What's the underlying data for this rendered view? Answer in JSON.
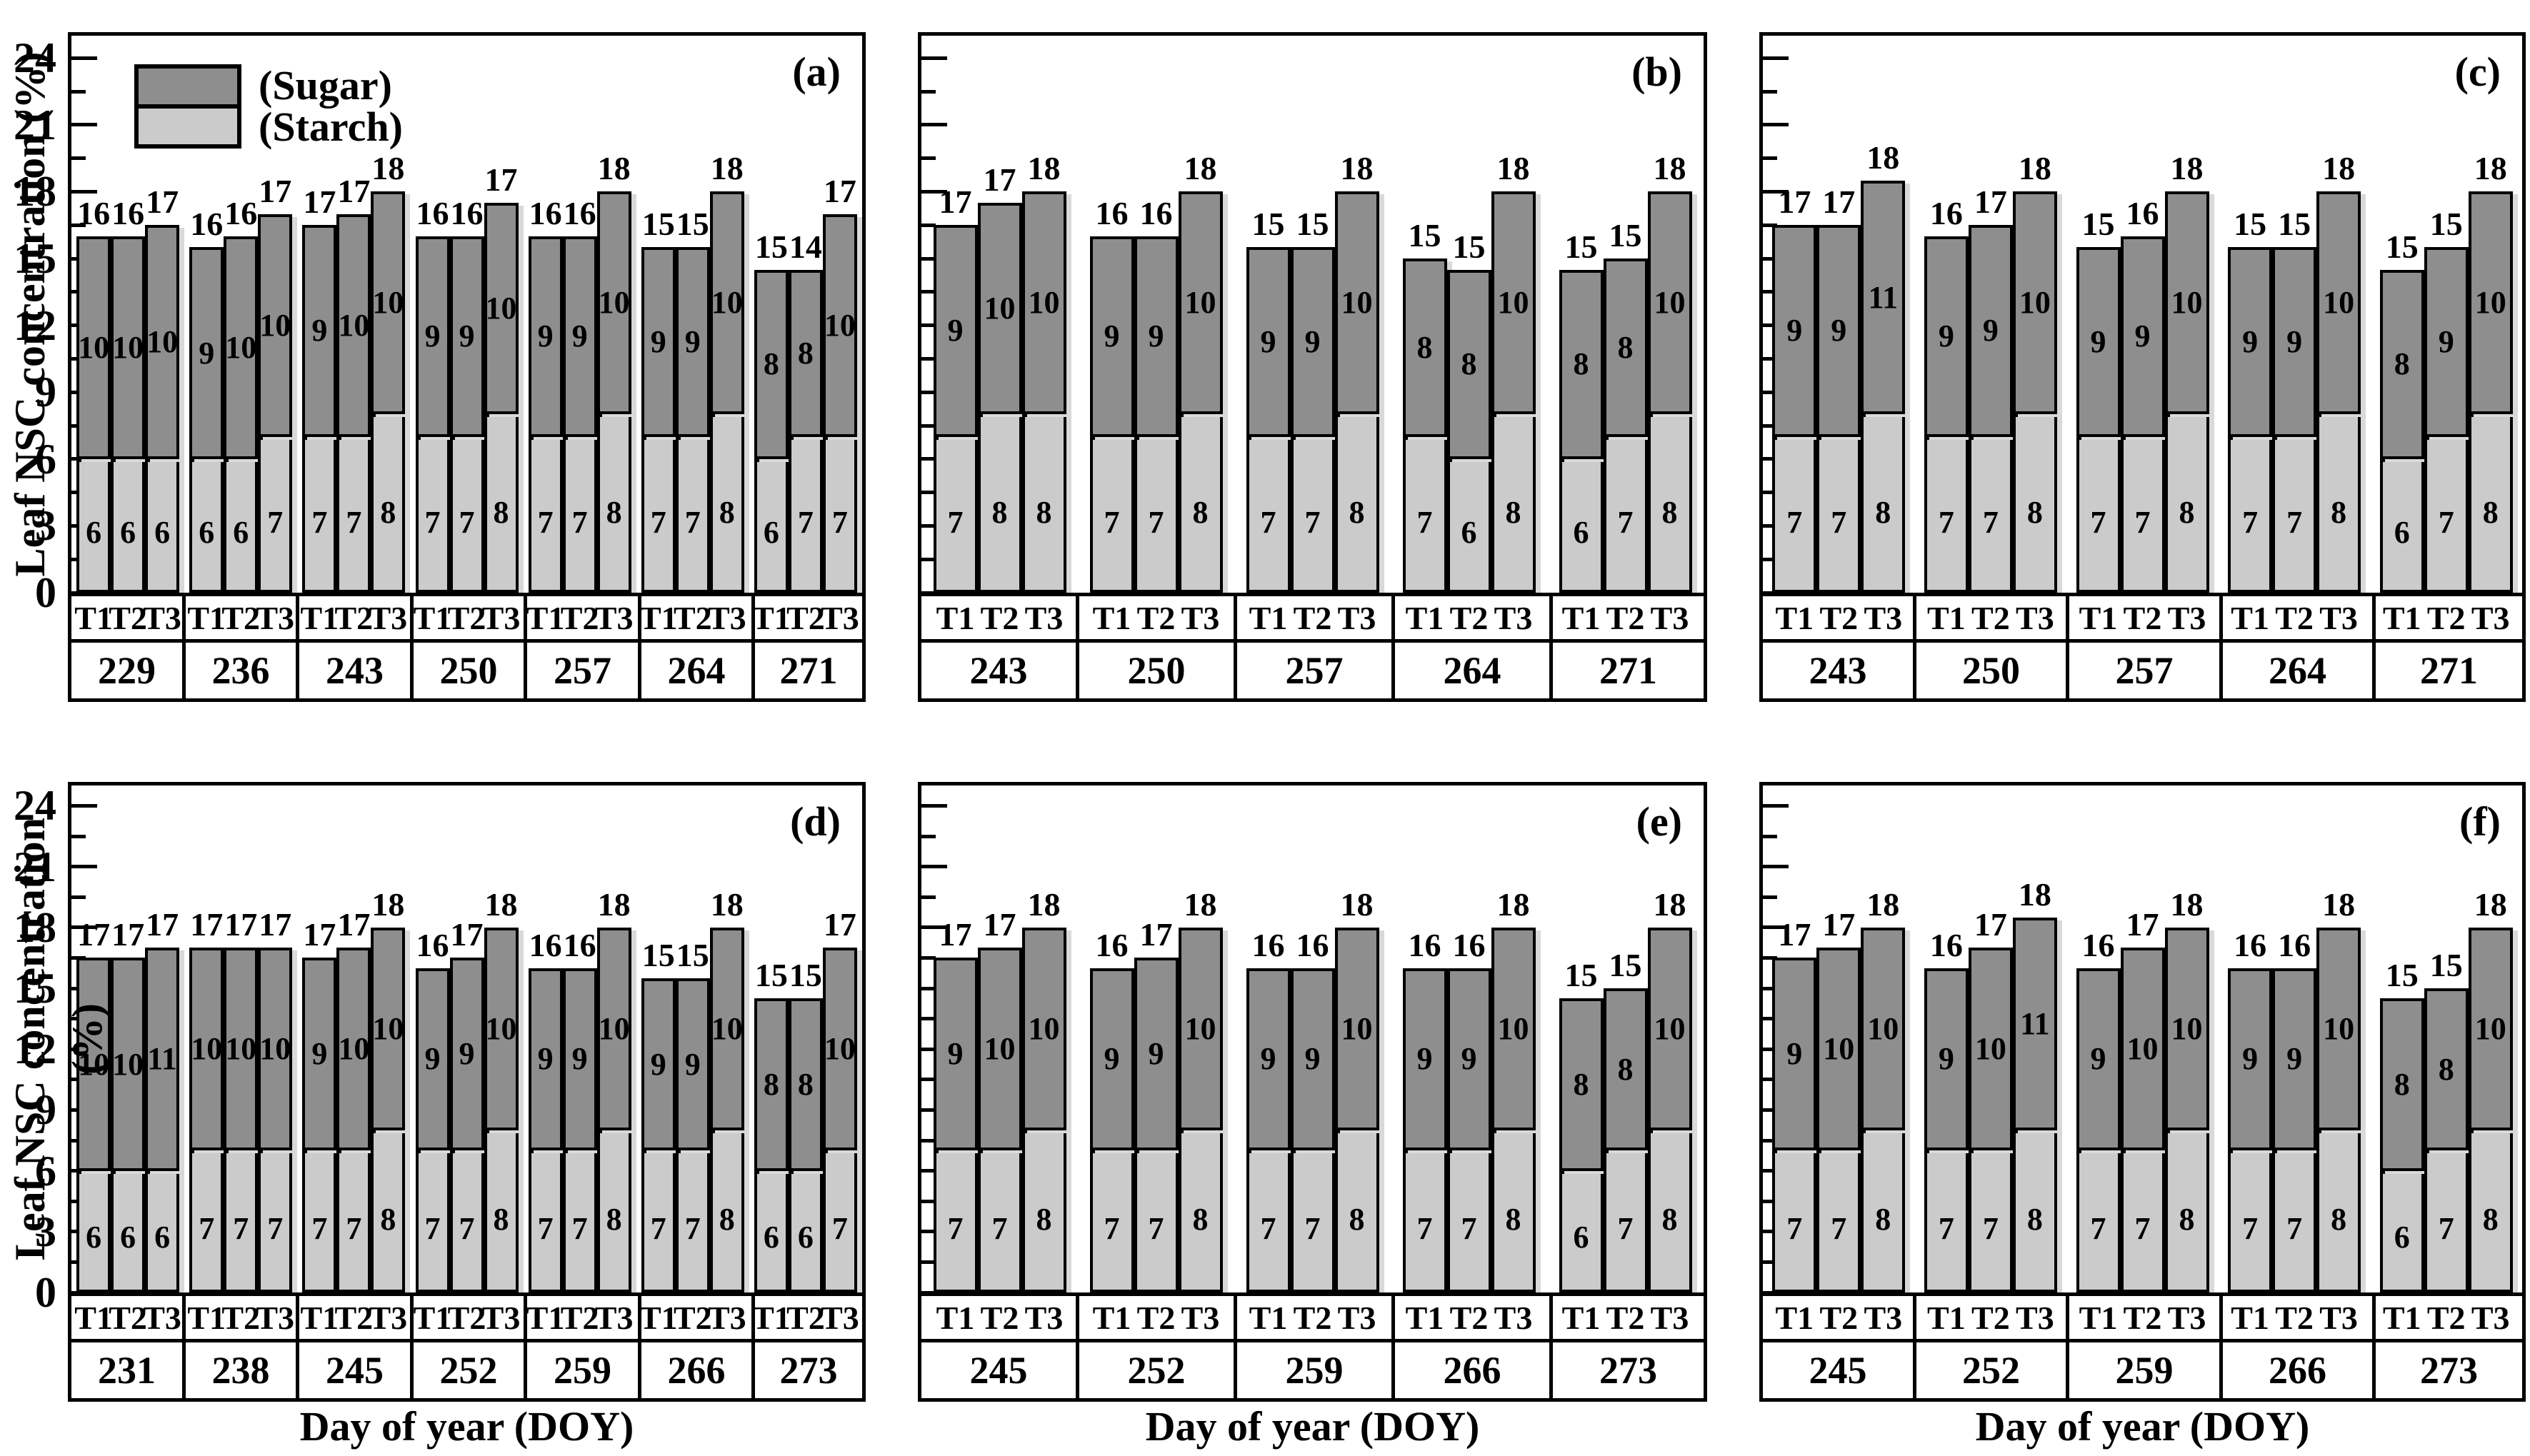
{
  "y_axis": {
    "title": "Leaf NSC concentration (%)",
    "tick_labels": [
      "0",
      "3",
      "6",
      "9",
      "12",
      "15",
      "18",
      "21",
      "24"
    ],
    "minor_step": 1.5,
    "max": 25
  },
  "x_axis": {
    "title": "Day of year (DOY)"
  },
  "legend": {
    "sugar": "(Sugar)",
    "starch": "(Starch)"
  },
  "treatments": [
    "T1",
    "T2",
    "T3"
  ],
  "colors": {
    "sugar_fill": "#8e8e8e",
    "starch_fill": "#cbcbcb",
    "border": "#000000",
    "background": "#ffffff"
  },
  "chart_data": [
    {
      "id": "a",
      "panel_letter": "(a)",
      "type": "stacked-bar",
      "show_y_tick_labels": true,
      "has_legend": true,
      "show_x_axis_title": false,
      "treatments": [
        "T1",
        "T2",
        "T3"
      ],
      "doys": [
        "229",
        "236",
        "243",
        "250",
        "257",
        "264",
        "271"
      ],
      "starch": [
        [
          6,
          6,
          6
        ],
        [
          6,
          6,
          7
        ],
        [
          7,
          7,
          8
        ],
        [
          7,
          7,
          8
        ],
        [
          7,
          7,
          8
        ],
        [
          7,
          7,
          8
        ],
        [
          6,
          7,
          7
        ]
      ],
      "sugar": [
        [
          10,
          10,
          10
        ],
        [
          9,
          10,
          10
        ],
        [
          9,
          10,
          10
        ],
        [
          9,
          9,
          10
        ],
        [
          9,
          9,
          10
        ],
        [
          9,
          9,
          10
        ],
        [
          8,
          8,
          10
        ]
      ],
      "totals": [
        [
          16,
          16,
          17
        ],
        [
          16,
          16,
          17
        ],
        [
          17,
          17,
          18
        ],
        [
          16,
          16,
          17
        ],
        [
          16,
          16,
          18
        ],
        [
          15,
          15,
          18
        ],
        [
          15,
          14,
          17
        ]
      ]
    },
    {
      "id": "b",
      "panel_letter": "(b)",
      "type": "stacked-bar",
      "show_y_tick_labels": false,
      "has_legend": false,
      "show_x_axis_title": false,
      "treatments": [
        "T1",
        "T2",
        "T3"
      ],
      "doys": [
        "243",
        "250",
        "257",
        "264",
        "271"
      ],
      "starch": [
        [
          7,
          8,
          8
        ],
        [
          7,
          7,
          8
        ],
        [
          7,
          7,
          8
        ],
        [
          7,
          6,
          8
        ],
        [
          6,
          7,
          8
        ]
      ],
      "sugar": [
        [
          9,
          10,
          10
        ],
        [
          9,
          9,
          10
        ],
        [
          9,
          9,
          10
        ],
        [
          8,
          8,
          10
        ],
        [
          8,
          8,
          10
        ]
      ],
      "totals": [
        [
          17,
          17,
          18
        ],
        [
          16,
          16,
          18
        ],
        [
          15,
          15,
          18
        ],
        [
          15,
          15,
          18
        ],
        [
          15,
          15,
          18
        ]
      ]
    },
    {
      "id": "c",
      "panel_letter": "(c)",
      "type": "stacked-bar",
      "show_y_tick_labels": false,
      "has_legend": false,
      "show_x_axis_title": false,
      "treatments": [
        "T1",
        "T2",
        "T3"
      ],
      "doys": [
        "243",
        "250",
        "257",
        "264",
        "271"
      ],
      "starch": [
        [
          7,
          7,
          8
        ],
        [
          7,
          7,
          8
        ],
        [
          7,
          7,
          8
        ],
        [
          7,
          7,
          8
        ],
        [
          6,
          7,
          8
        ]
      ],
      "sugar": [
        [
          9,
          9,
          11
        ],
        [
          9,
          9,
          10
        ],
        [
          9,
          9,
          10
        ],
        [
          9,
          9,
          10
        ],
        [
          8,
          9,
          10
        ]
      ],
      "totals": [
        [
          17,
          17,
          18
        ],
        [
          16,
          17,
          18
        ],
        [
          15,
          16,
          18
        ],
        [
          15,
          15,
          18
        ],
        [
          15,
          15,
          18
        ]
      ]
    },
    {
      "id": "d",
      "panel_letter": "(d)",
      "type": "stacked-bar",
      "show_y_tick_labels": true,
      "has_legend": false,
      "show_x_axis_title": true,
      "treatments": [
        "T1",
        "T2",
        "T3"
      ],
      "doys": [
        "231",
        "238",
        "245",
        "252",
        "259",
        "266",
        "273"
      ],
      "starch": [
        [
          6,
          6,
          6
        ],
        [
          7,
          7,
          7
        ],
        [
          7,
          7,
          8
        ],
        [
          7,
          7,
          8
        ],
        [
          7,
          7,
          8
        ],
        [
          7,
          7,
          8
        ],
        [
          6,
          6,
          7
        ]
      ],
      "sugar": [
        [
          10,
          10,
          11
        ],
        [
          10,
          10,
          10
        ],
        [
          9,
          10,
          10
        ],
        [
          9,
          9,
          10
        ],
        [
          9,
          9,
          10
        ],
        [
          9,
          9,
          10
        ],
        [
          8,
          8,
          10
        ]
      ],
      "totals": [
        [
          17,
          17,
          17
        ],
        [
          17,
          17,
          17
        ],
        [
          17,
          17,
          18
        ],
        [
          16,
          17,
          18
        ],
        [
          16,
          16,
          18
        ],
        [
          15,
          15,
          18
        ],
        [
          15,
          15,
          17
        ]
      ]
    },
    {
      "id": "e",
      "panel_letter": "(e)",
      "type": "stacked-bar",
      "show_y_tick_labels": false,
      "has_legend": false,
      "show_x_axis_title": true,
      "treatments": [
        "T1",
        "T2",
        "T3"
      ],
      "doys": [
        "245",
        "252",
        "259",
        "266",
        "273"
      ],
      "starch": [
        [
          7,
          7,
          8
        ],
        [
          7,
          7,
          8
        ],
        [
          7,
          7,
          8
        ],
        [
          7,
          7,
          8
        ],
        [
          6,
          7,
          8
        ]
      ],
      "sugar": [
        [
          9,
          10,
          10
        ],
        [
          9,
          9,
          10
        ],
        [
          9,
          9,
          10
        ],
        [
          9,
          9,
          10
        ],
        [
          8,
          8,
          10
        ]
      ],
      "totals": [
        [
          17,
          17,
          18
        ],
        [
          16,
          17,
          18
        ],
        [
          16,
          16,
          18
        ],
        [
          16,
          16,
          18
        ],
        [
          15,
          15,
          18
        ]
      ]
    },
    {
      "id": "f",
      "panel_letter": "(f)",
      "type": "stacked-bar",
      "show_y_tick_labels": false,
      "has_legend": false,
      "show_x_axis_title": true,
      "treatments": [
        "T1",
        "T2",
        "T3"
      ],
      "doys": [
        "245",
        "252",
        "259",
        "266",
        "273"
      ],
      "starch": [
        [
          7,
          7,
          8
        ],
        [
          7,
          7,
          8
        ],
        [
          7,
          7,
          8
        ],
        [
          7,
          7,
          8
        ],
        [
          6,
          7,
          8
        ]
      ],
      "sugar": [
        [
          9,
          10,
          10
        ],
        [
          9,
          10,
          11
        ],
        [
          9,
          10,
          10
        ],
        [
          9,
          9,
          10
        ],
        [
          8,
          8,
          10
        ]
      ],
      "totals": [
        [
          17,
          17,
          18
        ],
        [
          16,
          17,
          18
        ],
        [
          16,
          17,
          18
        ],
        [
          16,
          16,
          18
        ],
        [
          15,
          15,
          18
        ]
      ]
    }
  ]
}
